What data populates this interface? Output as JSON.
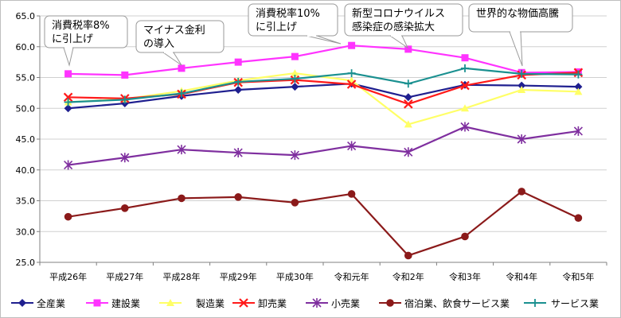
{
  "chart_data": {
    "type": "line",
    "title": "",
    "xlabel": "",
    "ylabel": "",
    "ylim": [
      25.0,
      65.0
    ],
    "yticks": [
      25.0,
      30.0,
      35.0,
      40.0,
      45.0,
      50.0,
      55.0,
      60.0,
      65.0
    ],
    "ytick_labels": [
      "25.0",
      "30.0",
      "35.0",
      "40.0",
      "45.0",
      "50.0",
      "55.0",
      "60.0",
      "65.0"
    ],
    "grid": true,
    "legend_position": "bottom",
    "categories": [
      "平成26年",
      "平成27年",
      "平成28年",
      "平成29年",
      "平成30年",
      "令和元年",
      "令和2年",
      "令和3年",
      "令和4年",
      "令和5年"
    ],
    "series": [
      {
        "name": "全産業",
        "color": "#1f1f8f",
        "marker": "diamond",
        "values": [
          50.0,
          50.8,
          52.0,
          53.0,
          53.5,
          54.0,
          51.8,
          53.8,
          53.7,
          53.5
        ]
      },
      {
        "name": "建設業",
        "color": "#ff33ff",
        "marker": "square",
        "values": [
          55.6,
          55.4,
          56.5,
          57.5,
          58.4,
          60.2,
          59.6,
          58.2,
          55.8,
          55.9
        ]
      },
      {
        "name": "製造業",
        "color": "#ffff66",
        "marker": "triangle",
        "values": [
          51.0,
          51.5,
          52.8,
          54.5,
          55.7,
          54.5,
          47.4,
          50.0,
          53.0,
          52.7
        ]
      },
      {
        "name": "卸売業",
        "color": "#ff1a1a",
        "marker": "x",
        "values": [
          51.8,
          51.6,
          52.3,
          54.2,
          54.6,
          53.9,
          50.7,
          53.7,
          55.4,
          55.8
        ]
      },
      {
        "name": "小売業",
        "color": "#7f2f9f",
        "marker": "star",
        "values": [
          40.8,
          42.0,
          43.3,
          42.8,
          42.4,
          43.9,
          42.9,
          47.0,
          45.0,
          46.3
        ]
      },
      {
        "name": "宿泊業、飲食サービス業",
        "color": "#8b1a1a",
        "marker": "circle",
        "values": [
          32.4,
          33.8,
          35.4,
          35.6,
          34.7,
          36.1,
          26.1,
          29.2,
          36.5,
          32.2
        ]
      },
      {
        "name": "サービス業",
        "color": "#1a9090",
        "marker": "plus",
        "values": [
          51.0,
          51.4,
          52.4,
          54.3,
          54.8,
          55.7,
          54.0,
          56.5,
          55.6,
          55.5
        ]
      }
    ],
    "annotations": [
      {
        "lines": [
          "消費税率8%",
          "に引上げ"
        ],
        "category": "平成26年"
      },
      {
        "lines": [
          "マイナス金利",
          "の導入"
        ],
        "category": "平成28年"
      },
      {
        "lines": [
          "消費税率10%",
          "に引上げ"
        ],
        "category": "令和元年"
      },
      {
        "lines": [
          "新型コロナウイルス",
          "感染症の感染拡大"
        ],
        "category": "令和2年"
      },
      {
        "lines": [
          "世界的な物価高騰"
        ],
        "category": "令和4年"
      }
    ]
  }
}
